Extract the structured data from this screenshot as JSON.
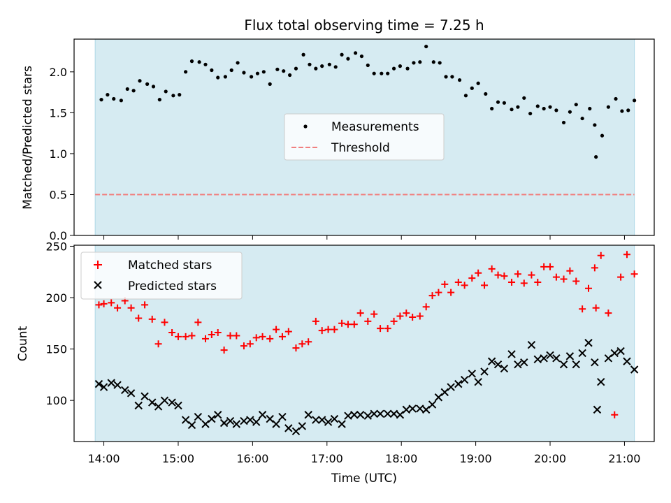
{
  "figure": {
    "title": "Flux total observing time = 7.25 h",
    "xlabel": "Time (UTC)",
    "xticks": [
      "14:00",
      "15:00",
      "16:00",
      "17:00",
      "18:00",
      "19:00",
      "20:00",
      "21:00"
    ],
    "colors": {
      "shade": "#add8e6",
      "matched": "#ff0000",
      "predicted": "#000000",
      "threshold": "#f08080",
      "measurements": "#000000"
    }
  },
  "chart_data": [
    {
      "type": "scatter",
      "ylabel": "Matched/Predicted stars",
      "ylim": [
        0,
        2.4
      ],
      "xlim": [
        "13:36",
        "21:24"
      ],
      "yticks": [
        "0.0",
        "0.5",
        "1.0",
        "1.5",
        "2.0"
      ],
      "shaded_interval": [
        "13:53",
        "21:08"
      ],
      "threshold": 0.5,
      "legend": {
        "placement": "center",
        "entries": [
          "Measurements",
          "Threshold"
        ]
      },
      "series": [
        {
          "name": "Measurements",
          "x": [
            "13:58",
            "14:03",
            "14:08",
            "14:14",
            "14:19",
            "14:24",
            "14:29",
            "14:35",
            "14:40",
            "14:45",
            "14:50",
            "14:56",
            "15:01",
            "15:06",
            "15:11",
            "15:17",
            "15:22",
            "15:27",
            "15:32",
            "15:38",
            "15:43",
            "15:48",
            "15:53",
            "15:59",
            "16:04",
            "16:09",
            "16:14",
            "16:20",
            "16:25",
            "16:30",
            "16:35",
            "16:41",
            "16:46",
            "16:51",
            "16:56",
            "17:02",
            "17:07",
            "17:12",
            "17:17",
            "17:23",
            "17:28",
            "17:33",
            "17:38",
            "17:44",
            "17:49",
            "17:54",
            "17:59",
            "18:05",
            "18:10",
            "18:15",
            "18:20",
            "18:26",
            "18:31",
            "18:36",
            "18:41",
            "18:47",
            "18:52",
            "18:57",
            "19:02",
            "19:08",
            "19:13",
            "19:18",
            "19:23",
            "19:29",
            "19:34",
            "19:39",
            "19:44",
            "19:50",
            "19:55",
            "20:00",
            "20:05",
            "20:11",
            "20:16",
            "20:21",
            "20:26",
            "20:32",
            "20:36",
            "20:37",
            "20:42",
            "20:47",
            "20:53",
            "20:58",
            "21:03",
            "21:08"
          ],
          "y": [
            1.66,
            1.72,
            1.67,
            1.65,
            1.79,
            1.77,
            1.89,
            1.85,
            1.82,
            1.66,
            1.76,
            1.71,
            1.72,
            2.0,
            2.13,
            2.12,
            2.09,
            2.02,
            1.93,
            1.94,
            2.02,
            2.11,
            1.99,
            1.94,
            1.98,
            2.0,
            1.85,
            2.03,
            2.01,
            1.96,
            2.04,
            2.21,
            2.09,
            2.04,
            2.07,
            2.09,
            2.06,
            2.21,
            2.16,
            2.23,
            2.19,
            2.08,
            1.98,
            1.98,
            1.98,
            2.04,
            2.07,
            2.04,
            2.11,
            2.12,
            2.31,
            2.12,
            2.11,
            1.94,
            1.94,
            1.9,
            1.71,
            1.8,
            1.86,
            1.73,
            1.55,
            1.63,
            1.62,
            1.54,
            1.57,
            1.68,
            1.49,
            1.58,
            1.55,
            1.57,
            1.53,
            1.38,
            1.51,
            1.6,
            1.43,
            1.55,
            1.35,
            0.96,
            1.22,
            1.57,
            1.67,
            1.52,
            1.53,
            1.65
          ]
        }
      ]
    },
    {
      "type": "scatter",
      "ylabel": "Count",
      "ylim": [
        60,
        251
      ],
      "xlim": [
        "13:36",
        "21:24"
      ],
      "yticks": [
        "100",
        "150",
        "200",
        "250"
      ],
      "shaded_interval": [
        "13:53",
        "21:08"
      ],
      "legend": {
        "placement": "upper-left",
        "entries": [
          "Matched stars",
          "Predicted stars"
        ]
      },
      "series": [
        {
          "name": "Matched stars",
          "x": [
            "13:56",
            "14:00",
            "14:06",
            "14:11",
            "14:17",
            "14:22",
            "14:28",
            "14:33",
            "14:39",
            "14:44",
            "14:49",
            "14:55",
            "15:00",
            "15:06",
            "15:11",
            "15:16",
            "15:22",
            "15:27",
            "15:32",
            "15:37",
            "15:42",
            "15:47",
            "15:53",
            "15:58",
            "16:03",
            "16:08",
            "16:14",
            "16:19",
            "16:24",
            "16:29",
            "16:35",
            "16:40",
            "16:45",
            "16:51",
            "16:56",
            "17:01",
            "17:06",
            "17:12",
            "17:17",
            "17:22",
            "17:27",
            "17:33",
            "17:38",
            "17:43",
            "17:49",
            "17:54",
            "17:59",
            "18:04",
            "18:09",
            "18:15",
            "18:20",
            "18:25",
            "18:30",
            "18:35",
            "18:40",
            "18:46",
            "18:51",
            "18:57",
            "19:02",
            "19:07",
            "19:13",
            "19:18",
            "19:23",
            "19:29",
            "19:34",
            "19:39",
            "19:45",
            "19:50",
            "19:55",
            "20:00",
            "20:05",
            "20:11",
            "20:16",
            "20:21",
            "20:26",
            "20:31",
            "20:36",
            "20:37",
            "20:41",
            "20:47",
            "20:52",
            "20:57",
            "21:02",
            "21:08"
          ],
          "y": [
            193,
            194,
            195,
            190,
            197,
            190,
            180,
            193,
            179,
            155,
            176,
            166,
            162,
            162,
            163,
            176,
            160,
            164,
            166,
            149,
            163,
            163,
            153,
            155,
            161,
            162,
            160,
            169,
            162,
            167,
            151,
            155,
            157,
            177,
            168,
            169,
            169,
            175,
            174,
            174,
            185,
            177,
            184,
            170,
            170,
            177,
            182,
            185,
            181,
            182,
            191,
            202,
            205,
            213,
            205,
            215,
            212,
            219,
            224,
            212,
            228,
            222,
            221,
            215,
            223,
            214,
            222,
            215,
            230,
            230,
            220,
            218,
            226,
            216,
            189,
            209,
            229,
            190,
            241,
            185,
            86,
            220,
            242,
            223
          ]
        },
        {
          "name": "Predicted stars",
          "x": [
            "13:56",
            "14:00",
            "14:06",
            "14:11",
            "14:17",
            "14:22",
            "14:28",
            "14:33",
            "14:39",
            "14:44",
            "14:49",
            "14:55",
            "15:00",
            "15:06",
            "15:11",
            "15:16",
            "15:22",
            "15:27",
            "15:32",
            "15:37",
            "15:42",
            "15:47",
            "15:53",
            "15:58",
            "16:03",
            "16:08",
            "16:14",
            "16:19",
            "16:24",
            "16:29",
            "16:35",
            "16:40",
            "16:45",
            "16:51",
            "16:56",
            "17:01",
            "17:06",
            "17:12",
            "17:17",
            "17:22",
            "17:27",
            "17:33",
            "17:38",
            "17:43",
            "17:49",
            "17:54",
            "17:59",
            "18:04",
            "18:09",
            "18:15",
            "18:20",
            "18:25",
            "18:30",
            "18:35",
            "18:40",
            "18:46",
            "18:51",
            "18:57",
            "19:02",
            "19:07",
            "19:13",
            "19:18",
            "19:23",
            "19:29",
            "19:34",
            "19:39",
            "19:45",
            "19:50",
            "19:55",
            "20:00",
            "20:05",
            "20:11",
            "20:16",
            "20:21",
            "20:26",
            "20:31",
            "20:36",
            "20:38",
            "20:41",
            "20:47",
            "20:52",
            "20:57",
            "21:02",
            "21:08"
          ],
          "y": [
            116,
            113,
            117,
            115,
            110,
            107,
            95,
            104,
            98,
            94,
            100,
            98,
            95,
            81,
            76,
            84,
            77,
            82,
            86,
            78,
            80,
            77,
            80,
            81,
            79,
            86,
            82,
            77,
            84,
            73,
            70,
            75,
            86,
            81,
            81,
            79,
            82,
            77,
            85,
            86,
            86,
            85,
            87,
            87,
            87,
            87,
            86,
            91,
            92,
            92,
            91,
            96,
            103,
            108,
            113,
            116,
            120,
            126,
            118,
            128,
            138,
            135,
            131,
            145,
            135,
            137,
            154,
            140,
            141,
            144,
            141,
            135,
            143,
            135,
            146,
            156,
            137,
            91,
            118,
            141,
            146,
            148,
            138,
            130
          ]
        }
      ]
    }
  ]
}
